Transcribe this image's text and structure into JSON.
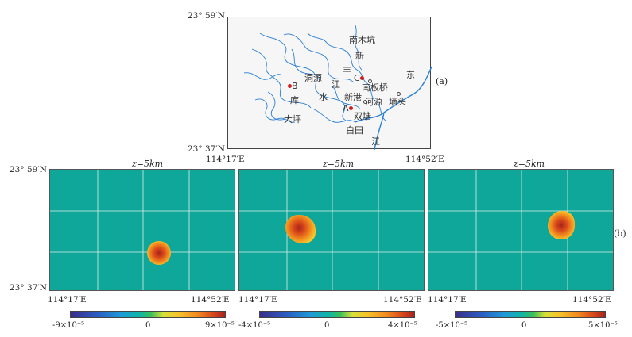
{
  "top_map": {
    "lat_top": "23° 59′N",
    "lat_bottom": "23° 37′N",
    "lon_left": "114°17′E",
    "lon_right": "114°52′E",
    "panel_tag": "(a)",
    "places": {
      "nanmukeng": "南木坑",
      "xin": "新",
      "feng": "丰",
      "c_label": "C",
      "dong": "东",
      "dongyuan": "洞源",
      "jiang1": "江",
      "nanbanqiao": "南板桥",
      "b_label": "B",
      "ku": "库",
      "shui": "水",
      "xingang": "新港",
      "heyuan": "河源",
      "tanttou": "埫头",
      "daping": "大坪",
      "a_label": "A",
      "shuangtang": "双塘",
      "baitian": "白田",
      "jiang2": "江"
    }
  },
  "panels": {
    "z_label": "z=5km",
    "panel_tag": "(b)",
    "lat_top": "23° 59′N",
    "lat_bottom": "23° 37′N",
    "lon_left": "114°17′E",
    "lon_right": "114°52′E",
    "colorbars": [
      {
        "min": "-9×10⁻⁵",
        "mid": "0",
        "max": "9×10⁻⁵"
      },
      {
        "min": "-4×10⁻⁵",
        "mid": "0",
        "max": "4×10⁻⁵"
      },
      {
        "min": "-5×10⁻⁵",
        "mid": "0",
        "max": "5×10⁻⁵"
      }
    ]
  },
  "colors": {
    "background": "#0fa79a",
    "river": "#2a7fd4",
    "point": "#d11f1f",
    "grid": "#dfeee9"
  }
}
